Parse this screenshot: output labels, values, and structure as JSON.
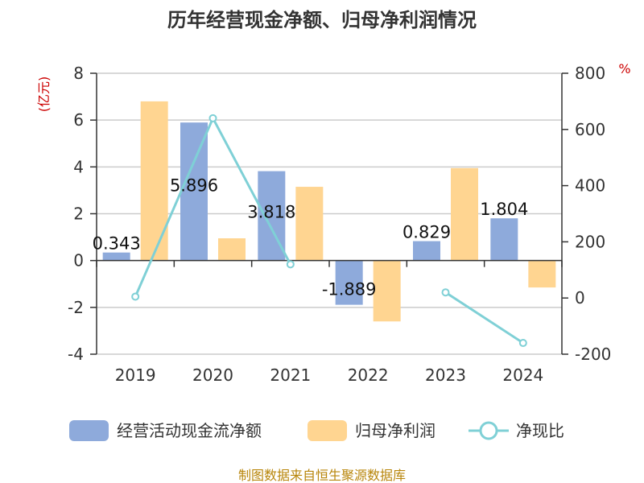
{
  "chart_data": {
    "type": "bar",
    "title": "历年经营现金净额、归母净利润情况",
    "categories": [
      "2019",
      "2020",
      "2021",
      "2022",
      "2023",
      "2024"
    ],
    "y_left": {
      "label": "(亿元)",
      "range": [
        -4,
        8
      ],
      "ticks": [
        "-4",
        "-2",
        "0",
        "2",
        "4",
        "6",
        "8"
      ]
    },
    "y_right": {
      "label": "%",
      "range": [
        -200,
        800
      ],
      "ticks": [
        "-200",
        "0",
        "200",
        "400",
        "600",
        "800"
      ]
    },
    "series": [
      {
        "name": "经营活动现金流净额",
        "kind": "bar",
        "axis": "left",
        "color": "#8EAADB",
        "values": [
          0.343,
          5.896,
          3.818,
          -1.889,
          0.829,
          1.804
        ],
        "labels": [
          "0.343",
          "5.896",
          "3.818",
          "-1.889",
          "0.829",
          "1.804"
        ]
      },
      {
        "name": "归母净利润",
        "kind": "bar",
        "axis": "left",
        "color": "#FFD591",
        "values": [
          6.8,
          0.95,
          3.15,
          -2.6,
          3.95,
          -1.15
        ]
      },
      {
        "name": "净现比",
        "kind": "line",
        "axis": "right",
        "color": "#7FD0D6",
        "values": [
          5,
          640,
          120,
          null,
          20,
          -160
        ]
      }
    ],
    "grid": true,
    "legend_position": "bottom"
  },
  "footer": {
    "source": "制图数据来自恒生聚源数据库"
  }
}
